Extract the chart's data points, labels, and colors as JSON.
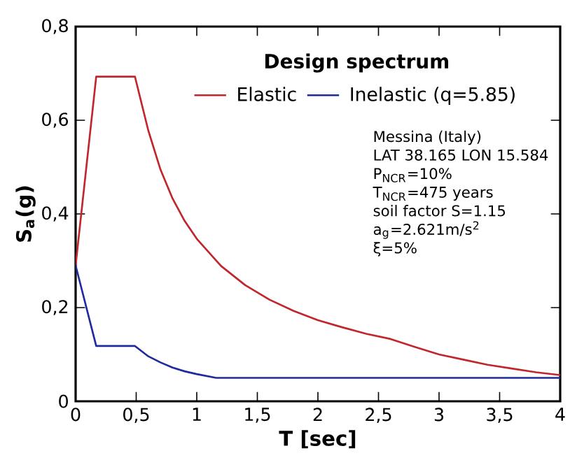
{
  "chart_data": {
    "type": "line",
    "legend_title": "Design spectrum",
    "xlabel": "T [sec]",
    "ylabel": "S$_{a}$(g)",
    "xlim": [
      0,
      4
    ],
    "ylim": [
      0,
      0.8
    ],
    "xticks": [
      0,
      {
        "value": 0.5,
        "label": "0,5"
      },
      1,
      {
        "value": 1.5,
        "label": "1,5"
      },
      2,
      {
        "value": 2.5,
        "label": "2,5"
      },
      3,
      {
        "value": 3.5,
        "label": "3,5"
      },
      4
    ],
    "yticks": [
      0,
      {
        "value": 0.2,
        "label": "0,2"
      },
      {
        "value": 0.4,
        "label": "0,4"
      },
      {
        "value": 0.6,
        "label": "0,6"
      },
      {
        "value": 0.8,
        "label": "0,8"
      }
    ],
    "legend": "top",
    "marker": "none",
    "line_style": "solid",
    "series": [
      {
        "name": "Elastic",
        "color": "#c0272d",
        "x": [
          0,
          0.17,
          0.49,
          0.55,
          0.6,
          0.7,
          0.8,
          0.9,
          1.0,
          1.2,
          1.4,
          1.6,
          1.8,
          2.0,
          2.2,
          2.4,
          2.6,
          2.8,
          3.0,
          3.2,
          3.4,
          3.6,
          3.8,
          4.0
        ],
        "values": [
          0.29,
          0.693,
          0.693,
          0.63,
          0.578,
          0.495,
          0.433,
          0.385,
          0.347,
          0.289,
          0.248,
          0.217,
          0.193,
          0.173,
          0.158,
          0.144,
          0.133,
          0.116,
          0.1,
          0.089,
          0.078,
          0.07,
          0.062,
          0.056
        ]
      },
      {
        "name": "Inelastic (q=5.85)",
        "color": "#1f2a9e",
        "x": [
          0,
          0.17,
          0.49,
          0.6,
          0.7,
          0.8,
          0.9,
          1.0,
          1.16,
          4.0
        ],
        "values": [
          0.29,
          0.118,
          0.118,
          0.096,
          0.083,
          0.072,
          0.064,
          0.058,
          0.05,
          0.05
        ]
      }
    ],
    "annotations": [
      "Messina (Italy)",
      "LAT 38.165 LON 15.584",
      "P$_{NCR}$=10%",
      "T$_{NCR}$=475 years",
      "soil factor S=1.15",
      "a$_{g}$=2.621m/s$^{2}$",
      "ξ=5%"
    ]
  }
}
